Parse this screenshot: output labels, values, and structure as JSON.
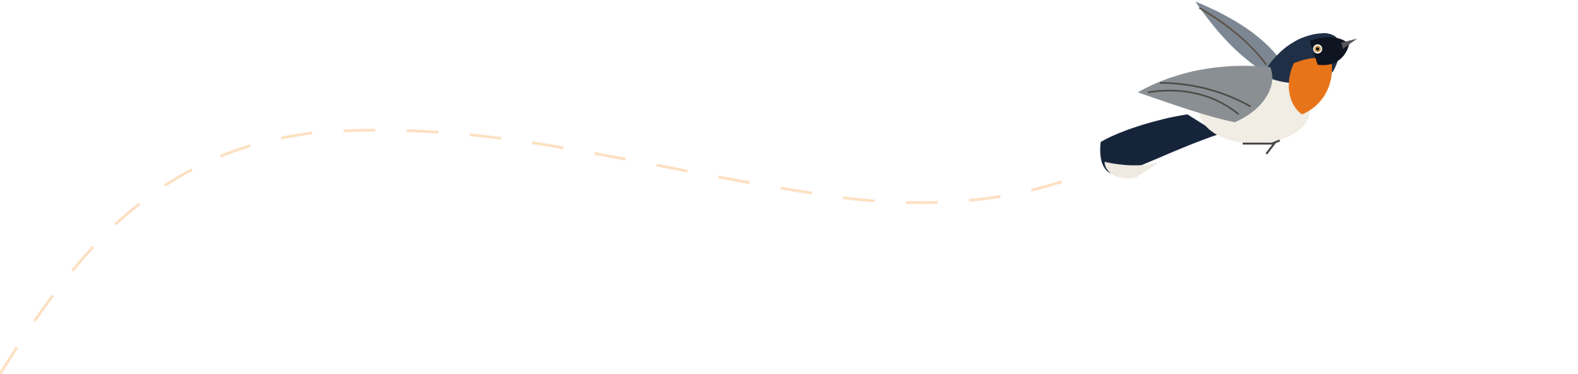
{
  "colors": {
    "background": "#ffffff",
    "flight_path": "#fde0c2",
    "bird_throat": "#e8741a",
    "bird_head": "#1f2f45",
    "bird_wing": "#8a8f94",
    "bird_belly": "#f1ede4"
  },
  "illustration": {
    "subject_icon": "flying-bird-icon",
    "path_style": "dashed"
  }
}
